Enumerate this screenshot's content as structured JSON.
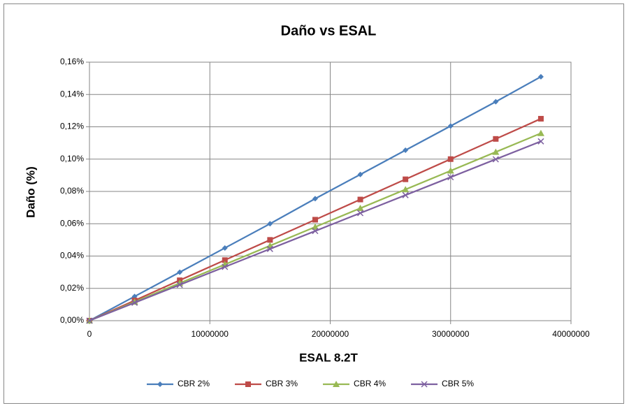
{
  "chart_data": {
    "type": "line",
    "title": "Daño vs ESAL",
    "xlabel": "ESAL 8.2T",
    "ylabel": "Daño (%)",
    "x": [
      0,
      3750000,
      7500000,
      11250000,
      15000000,
      18750000,
      22500000,
      26250000,
      30000000,
      33750000,
      37500000
    ],
    "series": [
      {
        "name": "CBR 2%",
        "color": "#4a7ebb",
        "marker": "diamond",
        "values": [
          0,
          0.015,
          0.03,
          0.045,
          0.06,
          0.0755,
          0.0905,
          0.1055,
          0.1205,
          0.1355,
          0.151
        ]
      },
      {
        "name": "CBR 3%",
        "color": "#be4b48",
        "marker": "square",
        "values": [
          0,
          0.0125,
          0.025,
          0.0375,
          0.05,
          0.0625,
          0.075,
          0.0875,
          0.1,
          0.1125,
          0.125
        ]
      },
      {
        "name": "CBR 4%",
        "color": "#98b954",
        "marker": "triangle",
        "values": [
          0,
          0.0116,
          0.0232,
          0.0348,
          0.0464,
          0.058,
          0.0696,
          0.0812,
          0.0928,
          0.1044,
          0.116
        ]
      },
      {
        "name": "CBR 5%",
        "color": "#7d60a0",
        "marker": "x",
        "values": [
          0,
          0.0111,
          0.0222,
          0.0333,
          0.0444,
          0.0555,
          0.0666,
          0.0777,
          0.0888,
          0.0999,
          0.111
        ]
      }
    ],
    "xlim": [
      0,
      40000000
    ],
    "xticks": [
      0,
      10000000,
      20000000,
      30000000,
      40000000
    ],
    "ylim": [
      0,
      0.16
    ],
    "yticks": [
      {
        "value": 0,
        "label": "0,00%"
      },
      {
        "value": 0.02,
        "label": "0,02%"
      },
      {
        "value": 0.04,
        "label": "0,04%"
      },
      {
        "value": 0.06,
        "label": "0,06%"
      },
      {
        "value": 0.08,
        "label": "0,08%"
      },
      {
        "value": 0.1,
        "label": "0,10%"
      },
      {
        "value": 0.12,
        "label": "0,12%"
      },
      {
        "value": 0.14,
        "label": "0,14%"
      },
      {
        "value": 0.16,
        "label": "0,16%"
      }
    ],
    "grid": true,
    "legend": "bottom"
  }
}
